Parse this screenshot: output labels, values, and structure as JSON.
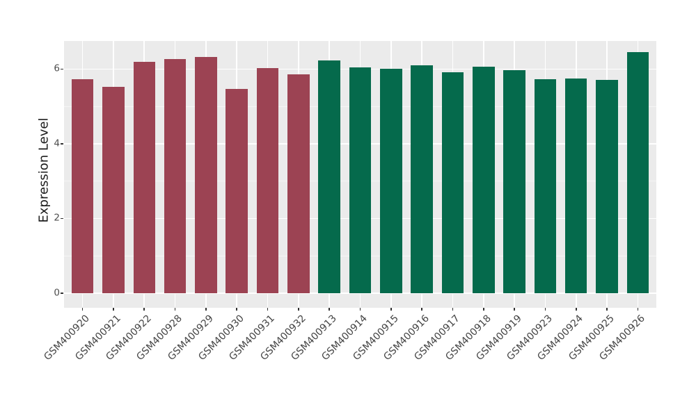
{
  "chart_data": {
    "type": "bar",
    "title": "",
    "xlabel": "",
    "ylabel": "Expression Level",
    "categories": [
      "GSM400920",
      "GSM400921",
      "GSM400922",
      "GSM400928",
      "GSM400929",
      "GSM400930",
      "GSM400931",
      "GSM400932",
      "GSM400913",
      "GSM400914",
      "GSM400915",
      "GSM400916",
      "GSM400917",
      "GSM400918",
      "GSM400919",
      "GSM400923",
      "GSM400924",
      "GSM400925",
      "GSM400926"
    ],
    "values": [
      5.73,
      5.52,
      6.2,
      6.27,
      6.32,
      5.47,
      6.03,
      5.85,
      6.23,
      6.04,
      6.01,
      6.09,
      5.91,
      6.06,
      5.96,
      5.72,
      5.75,
      5.71,
      6.46
    ],
    "bar_groups": [
      "maroon",
      "maroon",
      "maroon",
      "maroon",
      "maroon",
      "maroon",
      "maroon",
      "maroon",
      "green",
      "green",
      "green",
      "green",
      "green",
      "green",
      "green",
      "green",
      "green",
      "green",
      "green"
    ],
    "group_colors": {
      "maroon": "#9C4353",
      "green": "#056A4C"
    },
    "yticks": [
      0,
      2,
      4,
      6
    ],
    "minor_yticks": [
      1,
      3,
      5
    ],
    "ylim": [
      -0.39,
      6.75
    ],
    "x_label_rotation": 45,
    "legend_position": "none",
    "grid": "major-and-minor",
    "panel_background": "#EBEBEB",
    "gridline_color": "#FFFFFF",
    "axis_text_color": "#4D4D4D",
    "axis_title_color": "#1A1A1A"
  }
}
